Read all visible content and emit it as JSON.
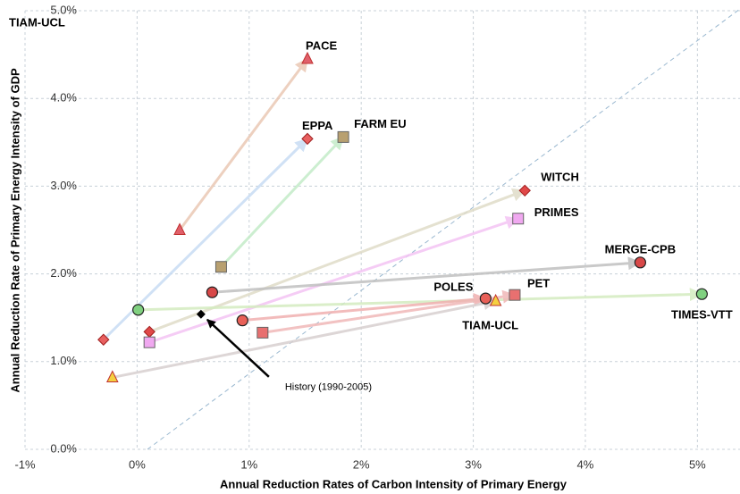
{
  "chart_data": {
    "type": "scatter",
    "corner_label": "TIAM-UCL",
    "x_label": "Annual Reduction Rates of Carbon Intensity of Primary Energy",
    "y_label": "Annual Reduction Rate of Primary Energy Intensity of GDP",
    "xlim": [
      -1,
      5.38
    ],
    "ylim": [
      0,
      5
    ],
    "xticks": [
      {
        "value": -1,
        "label": "-1%"
      },
      {
        "value": 0,
        "label": "0%"
      },
      {
        "value": 1,
        "label": "1%"
      },
      {
        "value": 2,
        "label": "2%"
      },
      {
        "value": 3,
        "label": "3%"
      },
      {
        "value": 4,
        "label": "4%"
      },
      {
        "value": 5,
        "label": "5%"
      }
    ],
    "yticks": [
      {
        "value": 0,
        "label": "0.0%"
      },
      {
        "value": 1,
        "label": "1.0%"
      },
      {
        "value": 2,
        "label": "2.0%"
      },
      {
        "value": 3,
        "label": "3.0%"
      },
      {
        "value": 4,
        "label": "4.0%"
      },
      {
        "value": 5,
        "label": "5.0%"
      }
    ],
    "grid": true,
    "series": [
      {
        "name": "PACE",
        "marker": "triangle",
        "color": "#e0606a",
        "line_color": "#eac8b4",
        "x": [
          0.38,
          1.52
        ],
        "values": [
          2.5,
          4.45
        ]
      },
      {
        "name": "EPPA",
        "marker": "diamond",
        "color": "#e86060",
        "line_color": "#c8dcf4",
        "x": [
          -0.3,
          1.52
        ],
        "values": [
          1.25,
          3.54
        ]
      },
      {
        "name": "FARM EU",
        "marker": "square",
        "color": "#b8a070",
        "line_color": "#c4ecc8",
        "x": [
          0.75,
          1.84
        ],
        "values": [
          2.08,
          3.56
        ]
      },
      {
        "name": "WITCH",
        "marker": "diamond",
        "color": "#e04848",
        "line_color": "#e0dcc8",
        "x": [
          0.11,
          3.46
        ],
        "values": [
          1.34,
          2.95
        ]
      },
      {
        "name": "PRIMES",
        "marker": "square",
        "color": "#f0a8f0",
        "line_color": "#f4c4f4",
        "x": [
          0.11,
          3.4
        ],
        "values": [
          1.22,
          2.63
        ]
      },
      {
        "name": "MERGE-CPB",
        "marker": "circle",
        "color": "#d84848",
        "line_color": "#c0c0c0",
        "x": [
          0.67,
          4.49
        ],
        "values": [
          1.79,
          2.13
        ]
      },
      {
        "name": "TIMES-VTT",
        "marker": "circle",
        "color": "#80d080",
        "line_color": "#d4ecc0",
        "x": [
          0.01,
          5.04
        ],
        "values": [
          1.59,
          1.77
        ]
      },
      {
        "name": "POLES",
        "marker": "circle",
        "color": "#e86058",
        "line_color": "#f0b0b0",
        "x": [
          0.94,
          3.11
        ],
        "values": [
          1.47,
          1.72
        ]
      },
      {
        "name": "PET",
        "marker": "square",
        "color": "#e87070",
        "line_color": "#f0b8b8",
        "x": [
          1.12,
          3.37
        ],
        "values": [
          1.33,
          1.76
        ]
      },
      {
        "name": "TIAM-UCL",
        "marker": "triangle",
        "color": "#f4d040",
        "line_color": "#d8d0d0",
        "x": [
          -0.22,
          3.2
        ],
        "values": [
          0.82,
          1.69
        ]
      }
    ],
    "history": {
      "label": "History (1990-2005)",
      "x": 0.57,
      "value": 1.54
    }
  }
}
